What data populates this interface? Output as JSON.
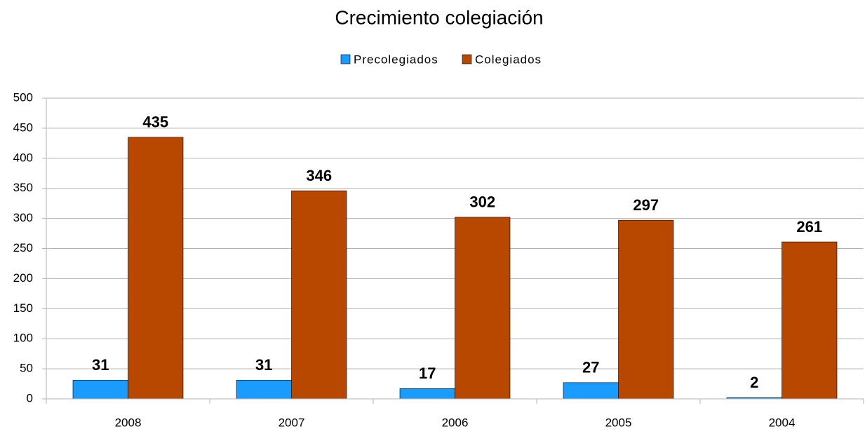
{
  "chart_data": {
    "type": "bar",
    "title": "Crecimiento colegiación",
    "categories": [
      "2008",
      "2007",
      "2006",
      "2005",
      "2004"
    ],
    "series": [
      {
        "name": "Precolegiados",
        "color": "#1a9cff",
        "values": [
          31,
          31,
          17,
          27,
          2
        ]
      },
      {
        "name": "Colegiados",
        "color": "#b84700",
        "values": [
          435,
          346,
          302,
          297,
          261
        ]
      }
    ],
    "ylim": [
      0,
      500
    ],
    "yticks": [
      0,
      50,
      100,
      150,
      200,
      250,
      300,
      350,
      400,
      450,
      500
    ],
    "grid": true,
    "legend": "top"
  }
}
